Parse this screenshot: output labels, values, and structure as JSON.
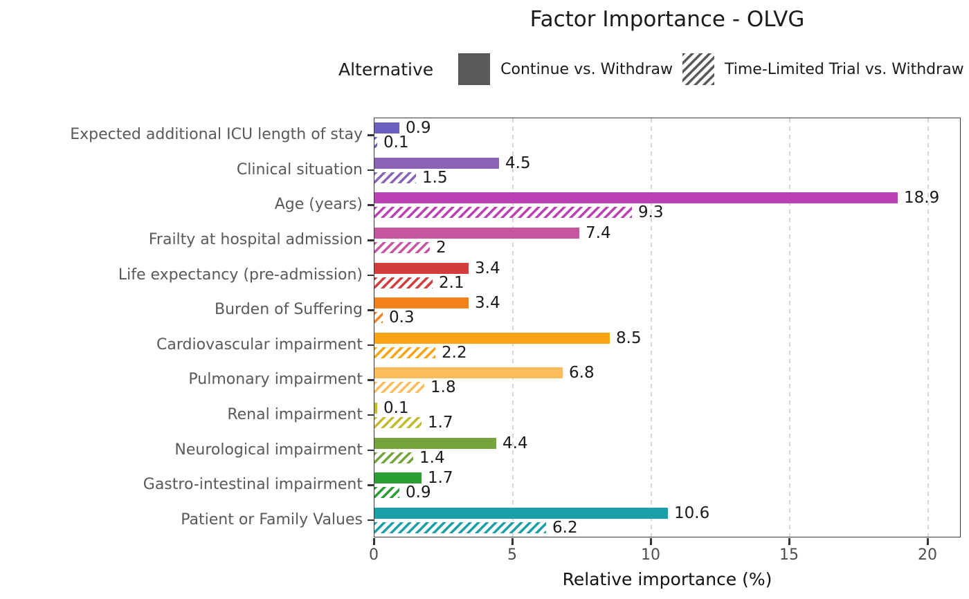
{
  "title": "Factor Importance - OLVG",
  "legend": {
    "title": "Alternative",
    "key_color": "#595959",
    "items": [
      {
        "label": "Continue vs. Withdraw",
        "pattern": "solid"
      },
      {
        "label": "Time-Limited Trial vs. Withdraw",
        "pattern": "hatched"
      }
    ]
  },
  "axis": {
    "xlabel": "Relative importance (%)",
    "x_tick_labels": [
      "0",
      "5",
      "10",
      "15",
      "20"
    ]
  },
  "chart_data": {
    "type": "bar",
    "orientation": "horizontal",
    "title": "Factor Importance - OLVG",
    "xlabel": "Relative importance (%)",
    "ylabel": "",
    "xlim": [
      0,
      21.2
    ],
    "x_ticks": [
      0,
      5,
      10,
      15,
      20
    ],
    "grid": "vertical-dashed-at-ticks",
    "legend_position": "top",
    "legend_title": "Alternative",
    "categories": [
      "Expected additional ICU length of stay",
      "Clinical situation",
      "Age (years)",
      "Frailty at hospital admission",
      "Life expectancy (pre-admission)",
      "Burden of Suffering",
      "Cardiovascular impairment",
      "Pulmonary impairment",
      "Renal impairment",
      "Neurological impairment",
      "Gastro-intestinal impairment",
      "Patient or Family Values"
    ],
    "category_colors": [
      "#6A5FC0",
      "#8A63B8",
      "#BC3FB3",
      "#C8559F",
      "#D23C3C",
      "#F2821B",
      "#F9A414",
      "#FBBC5C",
      "#C0BC2E",
      "#75A43D",
      "#2B9E33",
      "#1B9FA9"
    ],
    "series": [
      {
        "name": "Continue vs. Withdraw",
        "pattern": "solid",
        "values": [
          0.9,
          4.5,
          18.9,
          7.4,
          3.4,
          3.4,
          8.5,
          6.8,
          0.1,
          4.4,
          1.7,
          10.6
        ],
        "labels": [
          "0.9",
          "4.5",
          "18.9",
          "7.4",
          "3.4",
          "3.4",
          "8.5",
          "6.8",
          "0.1",
          "4.4",
          "1.7",
          "10.6"
        ]
      },
      {
        "name": "Time-Limited Trial vs. Withdraw",
        "pattern": "hatched",
        "values": [
          0.1,
          1.5,
          9.3,
          2,
          2.1,
          0.3,
          2.2,
          1.8,
          1.7,
          1.4,
          0.9,
          6.2
        ],
        "labels": [
          "0.1",
          "1.5",
          "9.3",
          "2",
          "2.1",
          "0.3",
          "2.2",
          "1.8",
          "1.7",
          "1.4",
          "0.9",
          "6.2"
        ]
      }
    ]
  }
}
